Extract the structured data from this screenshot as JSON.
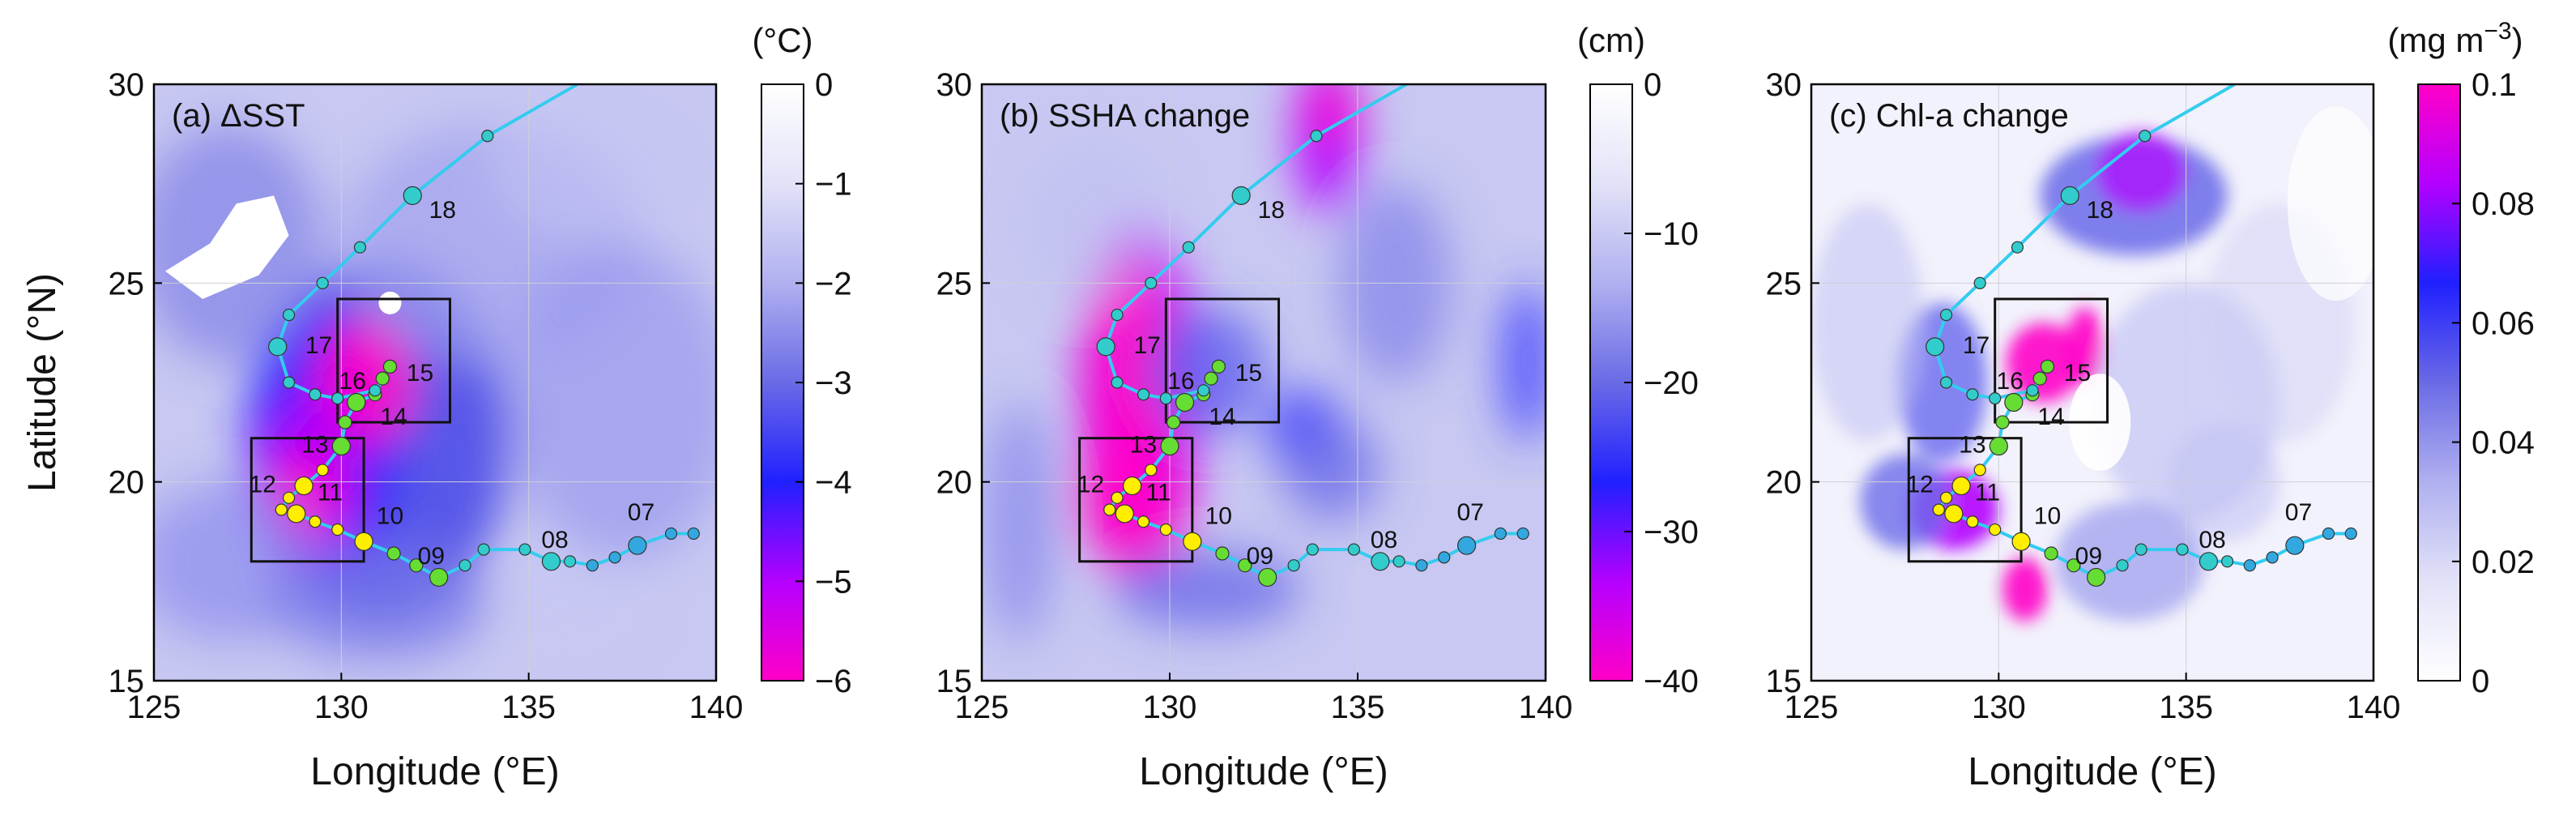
{
  "chart_data": [
    {
      "type": "heatmap",
      "panel_label": "(a) ΔSST",
      "xlabel": "Longitude (°E)",
      "ylabel": "Latitude (°N)",
      "xlim": [
        125,
        140
      ],
      "ylim": [
        15,
        30
      ],
      "xticks": [
        125,
        130,
        135,
        140
      ],
      "yticks": [
        15,
        20,
        25,
        30
      ],
      "colorbar": {
        "title": "(°C)",
        "min": -6,
        "max": 0,
        "ticks": [
          0,
          -1,
          -2,
          -3,
          -4,
          -5,
          -6
        ],
        "tick_labels": [
          "0",
          "−1",
          "−2",
          "−3",
          "−4",
          "−5",
          "−6"
        ],
        "colors": [
          "#ff00c8",
          "#b400ff",
          "#2020ff",
          "#6a6ae6",
          "#b0b0f0",
          "#e2e2f8",
          "#ffffff"
        ]
      }
    },
    {
      "type": "heatmap",
      "panel_label": "(b) SSHA change",
      "xlabel": "Longitude (°E)",
      "ylabel": "",
      "xlim": [
        125,
        140
      ],
      "ylim": [
        15,
        30
      ],
      "xticks": [
        125,
        130,
        135,
        140
      ],
      "yticks": [
        15,
        20,
        25,
        30
      ],
      "colorbar": {
        "title": "(cm)",
        "min": -40,
        "max": 0,
        "ticks": [
          0,
          -10,
          -20,
          -30,
          -40
        ],
        "tick_labels": [
          "0",
          "−10",
          "−20",
          "−30",
          "−40"
        ],
        "colors": [
          "#ff00c8",
          "#b400ff",
          "#2020ff",
          "#6a6ae6",
          "#b0b0f0",
          "#e2e2f8",
          "#ffffff"
        ]
      }
    },
    {
      "type": "heatmap",
      "panel_label": "(c) Chl-a change",
      "xlabel": "Longitude (°E)",
      "ylabel": "",
      "xlim": [
        125,
        140
      ],
      "ylim": [
        15,
        30
      ],
      "xticks": [
        125,
        130,
        135,
        140
      ],
      "yticks": [
        15,
        20,
        25,
        30
      ],
      "colorbar": {
        "title": "(mg m",
        "title_sup": "−3",
        "title_close": ")",
        "min": 0,
        "max": 0.1,
        "ticks": [
          0.1,
          0.08,
          0.06,
          0.04,
          0.02,
          0
        ],
        "tick_labels": [
          "0.1",
          "0.08",
          "0.06",
          "0.04",
          "0.02",
          "0"
        ],
        "colors": [
          "#ffffff",
          "#e2e2f8",
          "#b0b0f0",
          "#6a6ae6",
          "#2020ff",
          "#b400ff",
          "#ff00c8"
        ]
      }
    }
  ],
  "typhoon_track": {
    "points": [
      {
        "lon": 139.4,
        "lat": 18.7,
        "color": "#33a8e0",
        "r": 7
      },
      {
        "lon": 138.8,
        "lat": 18.7,
        "color": "#33a8e0",
        "r": 7
      },
      {
        "lon": 137.9,
        "lat": 18.4,
        "color": "#33a8e0",
        "r": 11
      },
      {
        "lon": 137.3,
        "lat": 18.1,
        "color": "#33a8e0",
        "r": 7
      },
      {
        "lon": 136.7,
        "lat": 17.9,
        "color": "#33a8e0",
        "r": 7
      },
      {
        "lon": 136.1,
        "lat": 18.0,
        "color": "#33cccc",
        "r": 7
      },
      {
        "lon": 135.6,
        "lat": 18.0,
        "color": "#33cccc",
        "r": 11
      },
      {
        "lon": 134.9,
        "lat": 18.3,
        "color": "#33cccc",
        "r": 7
      },
      {
        "lon": 133.8,
        "lat": 18.3,
        "color": "#33cccc",
        "r": 7
      },
      {
        "lon": 133.3,
        "lat": 17.9,
        "color": "#33cccc",
        "r": 7
      },
      {
        "lon": 132.6,
        "lat": 17.6,
        "color": "#66dd33",
        "r": 11
      },
      {
        "lon": 132.0,
        "lat": 17.9,
        "color": "#66dd33",
        "r": 8
      },
      {
        "lon": 131.4,
        "lat": 18.2,
        "color": "#66dd33",
        "r": 8
      },
      {
        "lon": 130.6,
        "lat": 18.5,
        "color": "#ffee00",
        "r": 11
      },
      {
        "lon": 129.9,
        "lat": 18.8,
        "color": "#ffee00",
        "r": 7
      },
      {
        "lon": 129.3,
        "lat": 19.0,
        "color": "#ffee00",
        "r": 7
      },
      {
        "lon": 128.8,
        "lat": 19.2,
        "color": "#ffee00",
        "r": 11
      },
      {
        "lon": 128.4,
        "lat": 19.3,
        "color": "#ffee00",
        "r": 7
      },
      {
        "lon": 128.6,
        "lat": 19.6,
        "color": "#ffee00",
        "r": 7
      },
      {
        "lon": 129.0,
        "lat": 19.9,
        "color": "#ffee00",
        "r": 11
      },
      {
        "lon": 129.5,
        "lat": 20.3,
        "color": "#ffee00",
        "r": 7
      },
      {
        "lon": 130.0,
        "lat": 20.9,
        "color": "#66dd33",
        "r": 11
      },
      {
        "lon": 130.1,
        "lat": 21.5,
        "color": "#66dd33",
        "r": 8
      },
      {
        "lon": 130.4,
        "lat": 22.0,
        "color": "#66dd33",
        "r": 11
      },
      {
        "lon": 130.9,
        "lat": 22.2,
        "color": "#66dd33",
        "r": 8
      },
      {
        "lon": 131.1,
        "lat": 22.6,
        "color": "#66dd33",
        "r": 8
      },
      {
        "lon": 131.3,
        "lat": 22.9,
        "color": "#66dd33",
        "r": 8
      },
      {
        "lon": 130.9,
        "lat": 22.3,
        "color": "#33cccc",
        "r": 7
      },
      {
        "lon": 129.9,
        "lat": 22.1,
        "color": "#33cccc",
        "r": 7
      },
      {
        "lon": 129.3,
        "lat": 22.2,
        "color": "#33cccc",
        "r": 7
      },
      {
        "lon": 128.6,
        "lat": 22.5,
        "color": "#33cccc",
        "r": 7
      },
      {
        "lon": 128.3,
        "lat": 23.4,
        "color": "#33cccc",
        "r": 11
      },
      {
        "lon": 128.6,
        "lat": 24.2,
        "color": "#33cccc",
        "r": 7
      },
      {
        "lon": 129.5,
        "lat": 25.0,
        "color": "#33cccc",
        "r": 7
      },
      {
        "lon": 130.5,
        "lat": 25.9,
        "color": "#33cccc",
        "r": 7
      },
      {
        "lon": 131.9,
        "lat": 27.2,
        "color": "#33cccc",
        "r": 11
      },
      {
        "lon": 133.9,
        "lat": 28.7,
        "color": "#33cccc",
        "r": 7
      },
      {
        "lon": 136.3,
        "lat": 30.0,
        "color": "#33cccc",
        "r": 0
      }
    ],
    "day_labels": [
      {
        "text": "07",
        "lon": 138.0,
        "lat": 19.2
      },
      {
        "text": "08",
        "lon": 135.7,
        "lat": 18.5
      },
      {
        "text": "09",
        "lon": 132.4,
        "lat": 18.1
      },
      {
        "text": "10",
        "lon": 131.3,
        "lat": 19.1
      },
      {
        "text": "11",
        "lon": 129.7,
        "lat": 19.7
      },
      {
        "text": "12",
        "lon": 127.9,
        "lat": 19.9
      },
      {
        "text": "13",
        "lon": 129.3,
        "lat": 20.9
      },
      {
        "text": "14",
        "lon": 131.4,
        "lat": 21.6
      },
      {
        "text": "15",
        "lon": 132.1,
        "lat": 22.7
      },
      {
        "text": "16",
        "lon": 130.3,
        "lat": 22.5
      },
      {
        "text": "17",
        "lon": 129.4,
        "lat": 23.4
      },
      {
        "text": "18",
        "lon": 132.7,
        "lat": 26.8
      }
    ],
    "line_color": "#33ccee"
  },
  "boxes": [
    {
      "lon0": 127.6,
      "lon1": 130.6,
      "lat0": 18.0,
      "lat1": 21.1
    },
    {
      "lon0": 129.9,
      "lon1": 132.9,
      "lat0": 21.5,
      "lat1": 24.6
    }
  ]
}
